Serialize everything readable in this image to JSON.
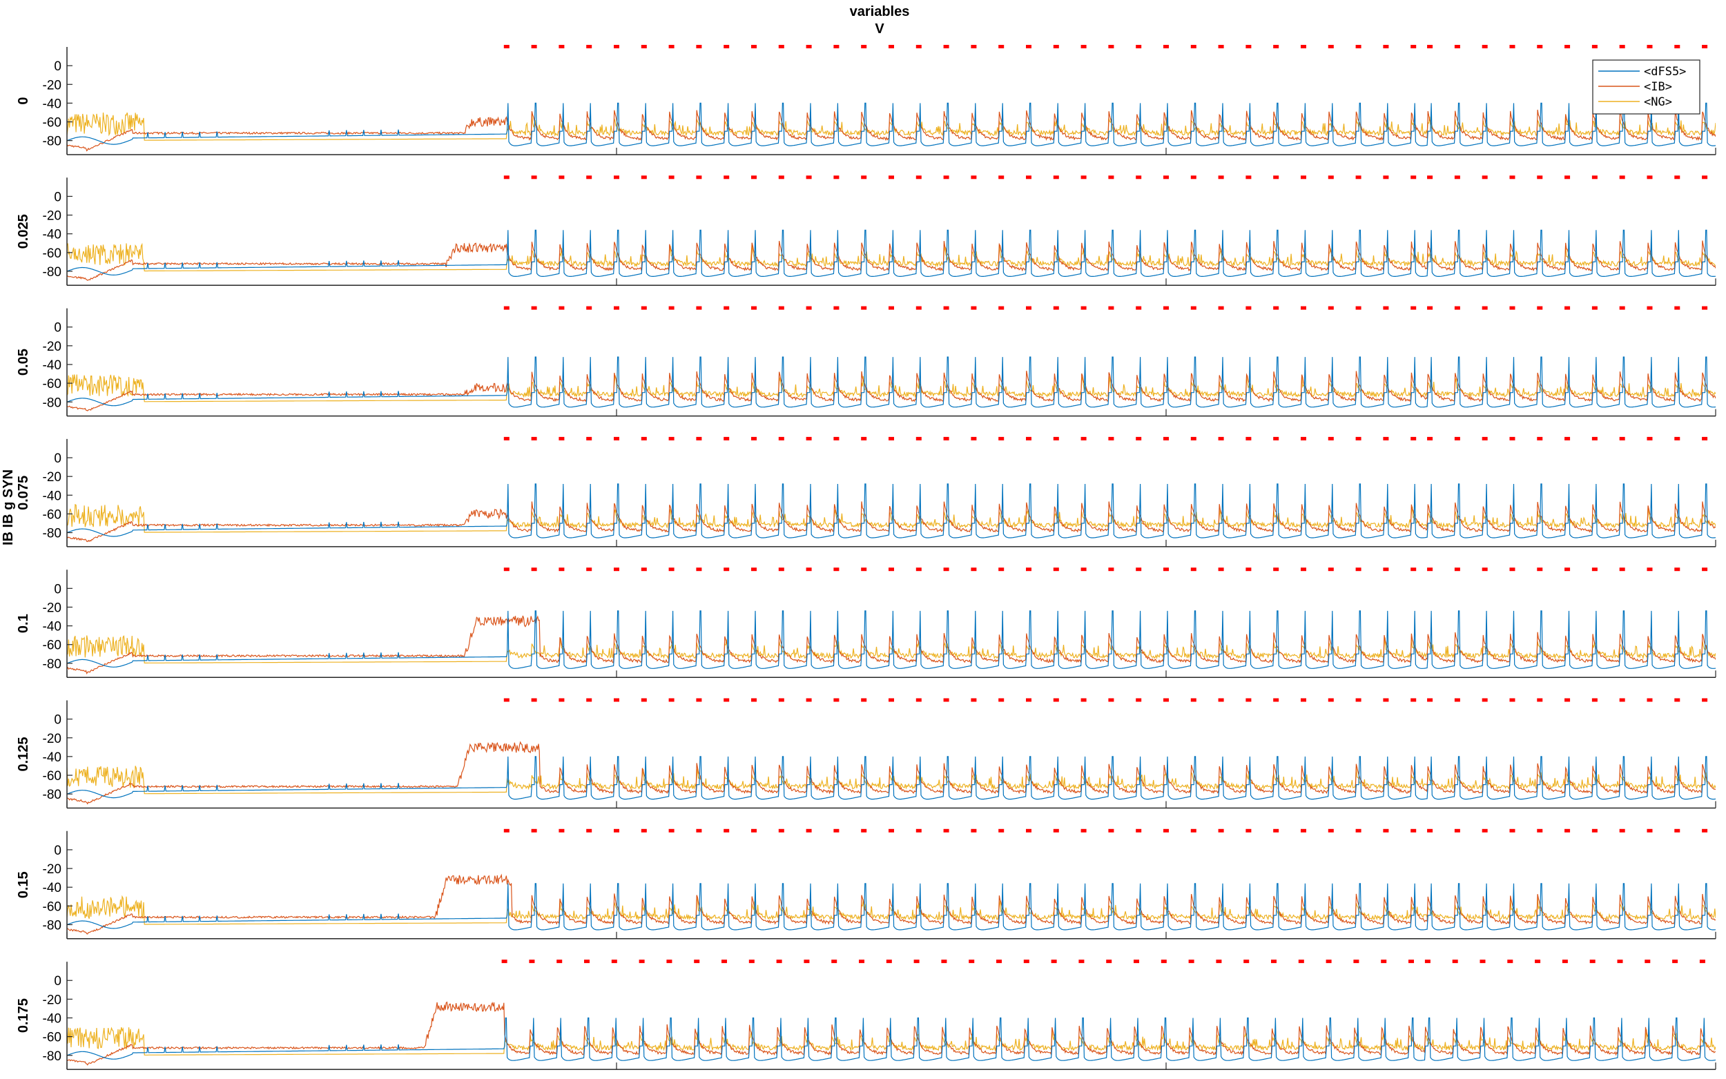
{
  "chart_data": {
    "type": "line",
    "title": [
      "variables",
      "V"
    ],
    "ylabel": "IB IB g SYN",
    "xlim": [
      0,
      1500
    ],
    "ylim": [
      -95,
      20
    ],
    "x_ticks": [
      0,
      500,
      1000,
      1500
    ],
    "y_ticks": [
      0,
      -20,
      -40,
      -60,
      -80
    ],
    "legend": {
      "placement": "top-right",
      "entries": [
        "<dFS5>",
        "<IB>",
        "<NG>"
      ]
    },
    "series_colors": {
      "<dFS5>": "#0072BD",
      "<IB>": "#D95319",
      "<NG>": "#EDB120"
    },
    "marker_color": "#FF0000",
    "panels": [
      {
        "label": "0",
        "plateau_start": 362,
        "plateau_end": 400,
        "plateau_level": -60,
        "markers": [
          400,
          425,
          450,
          475,
          500,
          525,
          550,
          575,
          600,
          625,
          650,
          675,
          700,
          725,
          750,
          775,
          800,
          825,
          850,
          875,
          900,
          925,
          950,
          975,
          1000,
          1025,
          1050,
          1075,
          1100,
          1125,
          1150,
          1175,
          1200,
          1225,
          1240,
          1265,
          1290,
          1315,
          1340,
          1365,
          1390,
          1415,
          1440,
          1465,
          1490
        ]
      },
      {
        "label": "0.025",
        "plateau_start": 345,
        "plateau_end": 400,
        "plateau_level": -55,
        "markers": [
          400,
          425,
          450,
          475,
          500,
          525,
          550,
          575,
          600,
          625,
          650,
          675,
          700,
          725,
          750,
          775,
          800,
          825,
          850,
          875,
          900,
          925,
          950,
          975,
          1000,
          1025,
          1050,
          1075,
          1100,
          1125,
          1150,
          1175,
          1200,
          1225,
          1240,
          1265,
          1290,
          1315,
          1340,
          1365,
          1390,
          1415,
          1440,
          1465,
          1490
        ]
      },
      {
        "label": "0.05",
        "plateau_start": 362,
        "plateau_end": 395,
        "plateau_level": -65,
        "markers": [
          400,
          425,
          450,
          475,
          500,
          525,
          550,
          575,
          600,
          625,
          650,
          675,
          700,
          725,
          750,
          775,
          800,
          825,
          850,
          875,
          900,
          925,
          950,
          975,
          1000,
          1025,
          1050,
          1075,
          1100,
          1125,
          1150,
          1175,
          1200,
          1225,
          1240,
          1265,
          1290,
          1315,
          1340,
          1365,
          1390,
          1415,
          1440,
          1465,
          1490
        ]
      },
      {
        "label": "0.075",
        "plateau_start": 362,
        "plateau_end": 400,
        "plateau_level": -60,
        "markers": [
          400,
          425,
          450,
          475,
          500,
          525,
          550,
          575,
          600,
          625,
          650,
          675,
          700,
          725,
          750,
          775,
          800,
          825,
          850,
          875,
          900,
          925,
          950,
          975,
          1000,
          1025,
          1050,
          1075,
          1100,
          1125,
          1150,
          1175,
          1200,
          1225,
          1240,
          1265,
          1290,
          1315,
          1340,
          1365,
          1390,
          1415,
          1440,
          1465,
          1490
        ]
      },
      {
        "label": "0.1",
        "plateau_start": 362,
        "plateau_end": 430,
        "plateau_level": -35,
        "markers": [
          400,
          425,
          450,
          475,
          500,
          525,
          550,
          575,
          600,
          625,
          650,
          675,
          700,
          725,
          750,
          775,
          800,
          825,
          850,
          875,
          900,
          925,
          950,
          975,
          1000,
          1025,
          1050,
          1075,
          1100,
          1125,
          1150,
          1175,
          1200,
          1225,
          1240,
          1265,
          1290,
          1315,
          1340,
          1365,
          1390,
          1415,
          1440,
          1465,
          1490
        ]
      },
      {
        "label": "0.125",
        "plateau_start": 355,
        "plateau_end": 430,
        "plateau_level": -30,
        "markers": [
          400,
          425,
          450,
          475,
          500,
          525,
          550,
          575,
          600,
          625,
          650,
          675,
          700,
          725,
          750,
          775,
          800,
          825,
          850,
          875,
          900,
          925,
          950,
          975,
          1000,
          1025,
          1050,
          1075,
          1100,
          1125,
          1150,
          1175,
          1200,
          1225,
          1240,
          1265,
          1290,
          1315,
          1340,
          1365,
          1390,
          1415,
          1440,
          1465,
          1490
        ]
      },
      {
        "label": "0.15",
        "plateau_start": 335,
        "plateau_end": 405,
        "plateau_level": -32,
        "markers": [
          400,
          425,
          450,
          475,
          500,
          525,
          550,
          575,
          600,
          625,
          650,
          675,
          700,
          725,
          750,
          775,
          800,
          825,
          850,
          875,
          900,
          925,
          950,
          975,
          1000,
          1025,
          1050,
          1075,
          1100,
          1125,
          1150,
          1175,
          1200,
          1225,
          1240,
          1265,
          1290,
          1315,
          1340,
          1365,
          1390,
          1415,
          1440,
          1465,
          1490
        ]
      },
      {
        "label": "0.175",
        "plateau_start": 325,
        "plateau_end": 398,
        "plateau_level": -28,
        "markers": [
          398,
          423,
          448,
          473,
          498,
          523,
          548,
          573,
          598,
          623,
          648,
          673,
          698,
          723,
          748,
          773,
          798,
          823,
          848,
          873,
          898,
          923,
          948,
          973,
          998,
          1023,
          1048,
          1073,
          1098,
          1123,
          1148,
          1173,
          1198,
          1223,
          1238,
          1263,
          1288,
          1313,
          1338,
          1363,
          1388,
          1413,
          1438,
          1463,
          1488
        ]
      }
    ]
  }
}
